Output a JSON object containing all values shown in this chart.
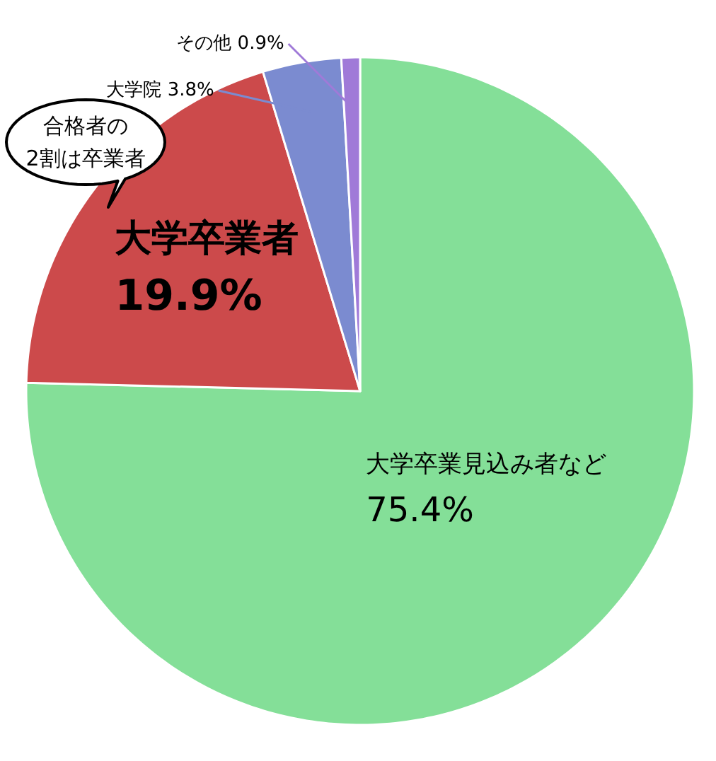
{
  "chart_data": {
    "type": "pie",
    "categories": [
      "大学卒業見込み者など",
      "大学卒業者",
      "大学院",
      "その他"
    ],
    "values": [
      75.4,
      19.9,
      3.8,
      0.9
    ],
    "value_labels": [
      "75.4%",
      "19.9%",
      "3.8%",
      "0.9%"
    ],
    "colors": [
      "#84df98",
      "#cc4a4b",
      "#7b8bd0",
      "#a07ad8"
    ],
    "annotations": [
      "合格者の\n2割は卒業者"
    ]
  }
}
